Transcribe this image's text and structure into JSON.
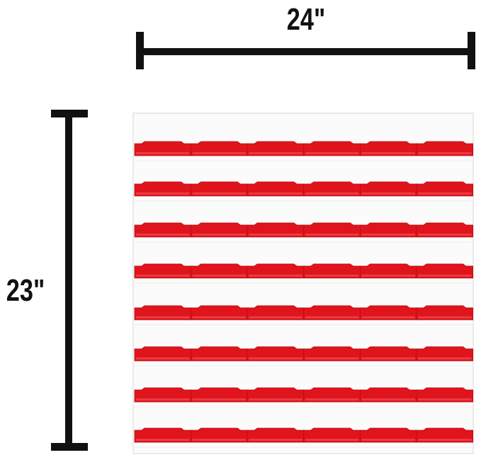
{
  "dimensions": {
    "width_label": "24\"",
    "height_label": "23\""
  }
}
